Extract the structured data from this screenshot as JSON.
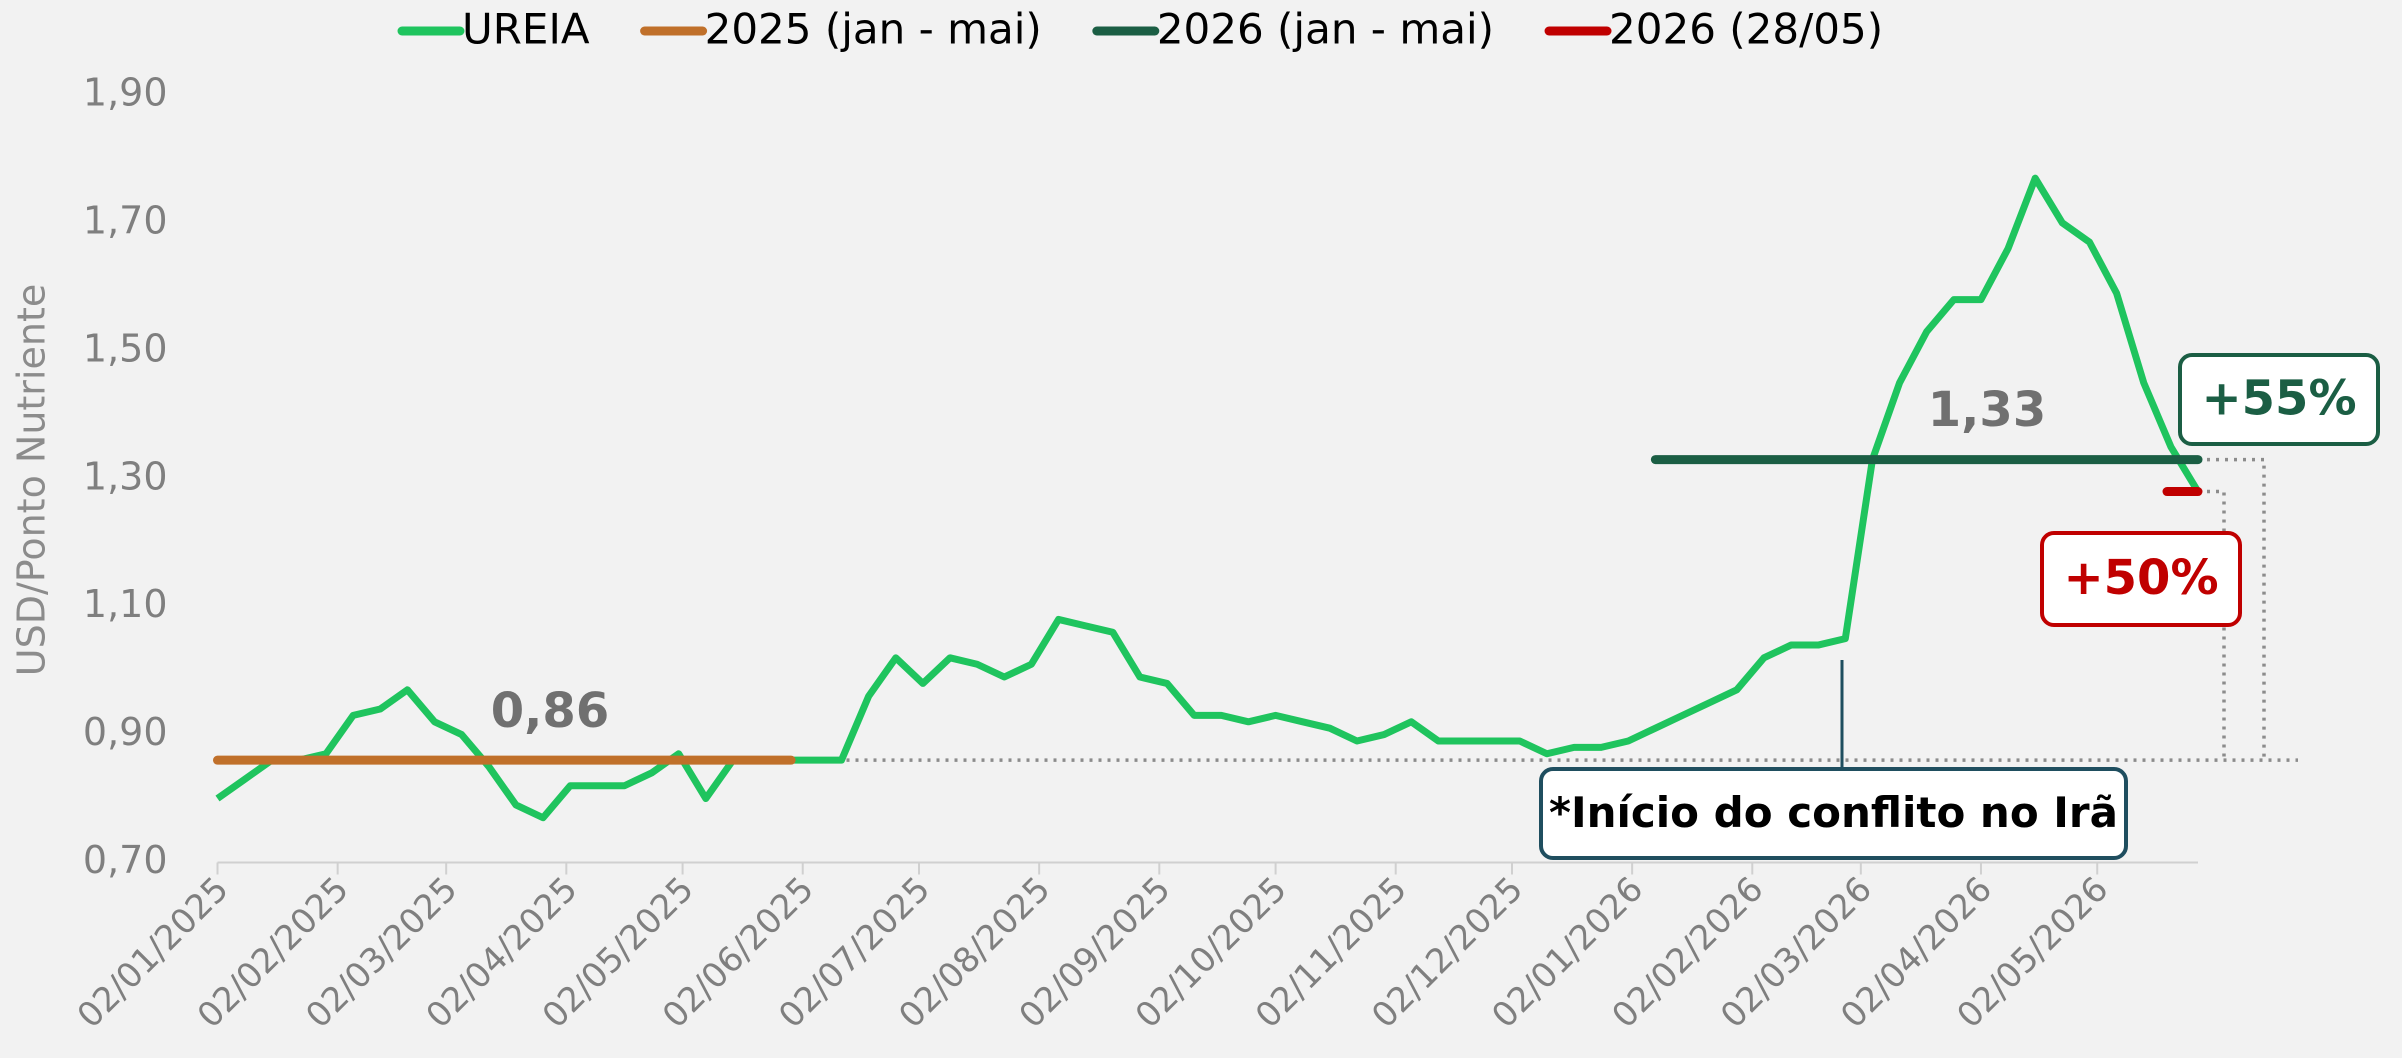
{
  "chart_data": {
    "type": "line",
    "y_axis_label": "USD/Ponto Nutriente",
    "ylim": [
      0.7,
      1.9
    ],
    "yticks": [
      {
        "value": 0.7,
        "label": "0,70"
      },
      {
        "value": 0.9,
        "label": "0,90"
      },
      {
        "value": 1.1,
        "label": "1,10"
      },
      {
        "value": 1.3,
        "label": "1,30"
      },
      {
        "value": 1.5,
        "label": "1,50"
      },
      {
        "value": 1.7,
        "label": "1,70"
      },
      {
        "value": 1.9,
        "label": "1,90"
      }
    ],
    "xlim": [
      "02/01/2025",
      "28/05/2026"
    ],
    "xticks": [
      "02/01/2025",
      "02/02/2025",
      "02/03/2025",
      "02/04/2025",
      "02/05/2025",
      "02/06/2025",
      "02/07/2025",
      "02/08/2025",
      "02/09/2025",
      "02/10/2025",
      "02/11/2025",
      "02/12/2025",
      "02/01/2026",
      "02/02/2026",
      "02/03/2026",
      "02/04/2026",
      "02/05/2026"
    ],
    "series": [
      {
        "name": "UREIA",
        "color": "#1fc45e",
        "x": [
          "02/01/2025",
          "09/01/2025",
          "16/01/2025",
          "23/01/2025",
          "30/01/2025",
          "06/02/2025",
          "13/02/2025",
          "20/02/2025",
          "27/02/2025",
          "06/03/2025",
          "13/03/2025",
          "20/03/2025",
          "27/03/2025",
          "03/04/2025",
          "10/04/2025",
          "17/04/2025",
          "24/04/2025",
          "01/05/2025",
          "08/05/2025",
          "15/05/2025",
          "22/05/2025",
          "29/05/2025",
          "05/06/2025",
          "12/06/2025",
          "19/06/2025",
          "26/06/2025",
          "03/07/2025",
          "10/07/2025",
          "17/07/2025",
          "24/07/2025",
          "31/07/2025",
          "07/08/2025",
          "14/08/2025",
          "21/08/2025",
          "28/08/2025",
          "04/09/2025",
          "11/09/2025",
          "18/09/2025",
          "25/09/2025",
          "02/10/2025",
          "09/10/2025",
          "16/10/2025",
          "23/10/2025",
          "30/10/2025",
          "06/11/2025",
          "13/11/2025",
          "20/11/2025",
          "27/11/2025",
          "04/12/2025",
          "11/12/2025",
          "18/12/2025",
          "25/12/2025",
          "01/01/2026",
          "08/01/2026",
          "15/01/2026",
          "22/01/2026",
          "29/01/2026",
          "05/02/2026",
          "12/02/2026",
          "19/02/2026",
          "26/02/2026",
          "05/03/2026",
          "12/03/2026",
          "19/03/2026",
          "26/03/2026",
          "02/04/2026",
          "09/04/2026",
          "16/04/2026",
          "23/04/2026",
          "30/04/2026",
          "07/05/2026",
          "14/05/2026",
          "21/05/2026",
          "28/05/2026"
        ],
        "values": [
          0.8,
          0.83,
          0.86,
          0.86,
          0.87,
          0.93,
          0.94,
          0.97,
          0.92,
          0.9,
          0.85,
          0.79,
          0.77,
          0.82,
          0.82,
          0.82,
          0.84,
          0.87,
          0.8,
          0.86,
          0.86,
          0.86,
          0.86,
          0.86,
          0.96,
          1.02,
          0.98,
          1.02,
          1.01,
          0.99,
          1.01,
          1.08,
          1.07,
          1.06,
          0.99,
          0.98,
          0.93,
          0.93,
          0.92,
          0.93,
          0.92,
          0.91,
          0.89,
          0.9,
          0.92,
          0.89,
          0.89,
          0.89,
          0.89,
          0.87,
          0.88,
          0.88,
          0.89,
          0.91,
          0.93,
          0.95,
          0.97,
          1.02,
          1.04,
          1.04,
          1.05,
          1.33,
          1.45,
          1.53,
          1.58,
          1.58,
          1.66,
          1.77,
          1.7,
          1.67,
          1.59,
          1.45,
          1.35,
          1.28
        ]
      },
      {
        "name": "2025 (jan - mai)",
        "color": "#c0702a",
        "x_start": "02/01/2025",
        "x_end": "30/05/2025",
        "value": 0.86,
        "value_label": "0,86"
      },
      {
        "name": "2026 (jan - mai)",
        "color": "#1b5e44",
        "x_start": "08/01/2026",
        "x_end": "28/05/2026",
        "value": 1.33,
        "value_label": "1,33"
      },
      {
        "name": "2026 (28/05)",
        "color": "#c00000",
        "x_start": "20/05/2026",
        "x_end": "28/05/2026",
        "value": 1.28
      }
    ],
    "annotations": [
      "+55%",
      "+50%",
      "*Início do conflito no Irã"
    ]
  }
}
